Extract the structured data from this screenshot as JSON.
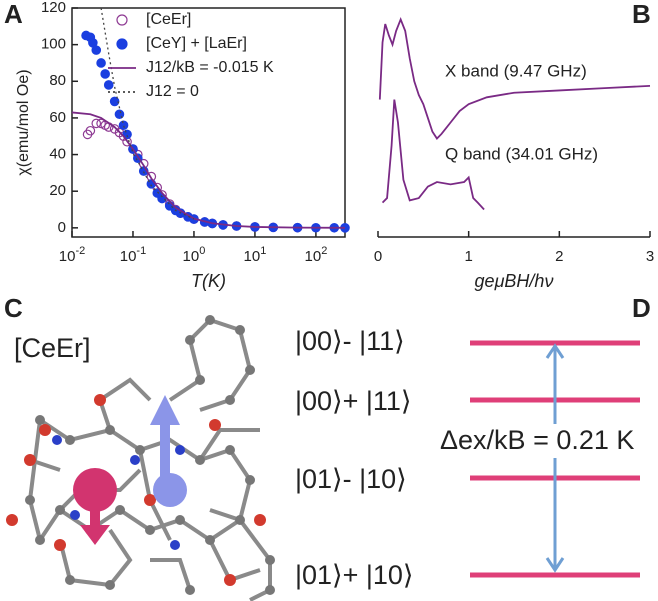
{
  "panels": [
    "A",
    "B",
    "C",
    "D"
  ],
  "chart_data": [
    {
      "type": "scatter",
      "xlabel": "T(K)",
      "ylabel": "χ(emu/mol Oe)",
      "log_x": true,
      "xlim": [
        0.01,
        300
      ],
      "xticks": [
        {
          "value": 0.01,
          "label": "10-2"
        },
        {
          "value": 0.1,
          "label": "10-1"
        },
        {
          "value": 1,
          "label": "100"
        },
        {
          "value": 10,
          "label": "101"
        },
        {
          "value": 100,
          "label": "102"
        }
      ],
      "ylim": [
        -5,
        120
      ],
      "yticks": [
        0,
        20,
        40,
        60,
        80,
        100,
        120
      ],
      "legend": "upper-right",
      "series": [
        {
          "name": "[CeEr]",
          "color": "#8e3a93",
          "style": "open-circle",
          "x": [
            0.018,
            0.02,
            0.025,
            0.03,
            0.035,
            0.04,
            0.05,
            0.06,
            0.07,
            0.08,
            0.1,
            0.12,
            0.15,
            0.2,
            0.25,
            0.3,
            0.4,
            0.5,
            0.6,
            0.8,
            1,
            1.5,
            2,
            3,
            5,
            10,
            20,
            50
          ],
          "values": [
            51,
            53,
            57,
            57,
            56,
            55,
            54,
            52,
            50,
            47,
            43,
            40,
            35,
            28,
            22,
            18,
            13,
            10,
            8,
            6,
            4.8,
            3.2,
            2.4,
            1.6,
            1.0,
            0.5,
            0.25,
            0.1
          ]
        },
        {
          "name": "[CeY] + [LaEr]",
          "color": "#1b3fe0",
          "style": "filled-circle",
          "x": [
            0.017,
            0.02,
            0.022,
            0.025,
            0.03,
            0.035,
            0.04,
            0.05,
            0.06,
            0.07,
            0.08,
            0.1,
            0.12,
            0.15,
            0.2,
            0.25,
            0.3,
            0.4,
            0.5,
            0.6,
            0.8,
            1,
            1.5,
            2,
            3,
            5,
            10,
            20,
            50,
            100,
            200,
            300
          ],
          "values": [
            105,
            104,
            101,
            97,
            90,
            84,
            78,
            69,
            62,
            56,
            51,
            43,
            38,
            31,
            24,
            19,
            16,
            12,
            9.5,
            8,
            6,
            4.8,
            3.2,
            2.4,
            1.6,
            1.0,
            0.5,
            0.25,
            0.1,
            0.05,
            0.03,
            0.02
          ]
        },
        {
          "name": "J12/kB = -0.015 K",
          "color": "#7a2a85",
          "style": "solid",
          "x": [
            0.01,
            0.02,
            0.03,
            0.05,
            0.07,
            0.1,
            0.15,
            0.2,
            0.3,
            0.5,
            1,
            2,
            5,
            10,
            50,
            300
          ],
          "values": [
            63,
            62,
            60,
            55,
            50,
            43,
            34,
            27,
            19,
            11,
            5,
            2.5,
            1,
            0.5,
            0.1,
            0.02
          ]
        },
        {
          "name": "J12 = 0",
          "color": "#444444",
          "style": "dotted",
          "x": [
            0.03,
            0.04,
            0.05,
            0.07,
            0.1,
            0.2,
            0.5,
            1
          ],
          "values": [
            120,
            95,
            77,
            56,
            41,
            23,
            9.5,
            4.8
          ]
        }
      ]
    },
    {
      "type": "line",
      "xlabel": "geμBH/hν",
      "xlim": [
        0,
        3
      ],
      "xticks": [
        0,
        1,
        2,
        3
      ],
      "ylim": [
        0,
        100
      ],
      "series": [
        {
          "name": "X band (9.47 GHz)",
          "color": "#7a2a85",
          "x": [
            0.02,
            0.05,
            0.08,
            0.12,
            0.16,
            0.2,
            0.25,
            0.3,
            0.35,
            0.4,
            0.45,
            0.5,
            0.55,
            0.6,
            0.65,
            0.7,
            0.8,
            0.9,
            1.0,
            1.2,
            1.5,
            2.0,
            2.5,
            3.0
          ],
          "values": [
            60,
            85,
            93,
            88,
            84,
            90,
            95,
            90,
            78,
            68,
            62,
            58,
            52,
            46,
            43,
            45,
            50,
            55,
            58,
            61,
            63,
            64,
            65,
            66
          ]
        },
        {
          "name": "Q band (34.01 GHz)",
          "color": "#7a2a85",
          "x": [
            0.05,
            0.1,
            0.15,
            0.18,
            0.22,
            0.28,
            0.35,
            0.45,
            0.55,
            0.65,
            0.8,
            0.95,
            1.0,
            1.05,
            1.1,
            1.17
          ],
          "values": [
            15,
            17,
            40,
            60,
            50,
            25,
            16,
            17,
            22,
            24,
            23,
            24,
            26,
            17,
            15,
            12
          ]
        }
      ]
    }
  ],
  "molecule": {
    "label": "[CeEr]"
  },
  "levels": {
    "labels": [
      "|00⟩- |11⟩",
      "|00⟩+ |11⟩",
      "|01⟩- |10⟩",
      "|01⟩+ |10⟩"
    ],
    "gap_label": "Δex/kB = 0.21 K"
  }
}
